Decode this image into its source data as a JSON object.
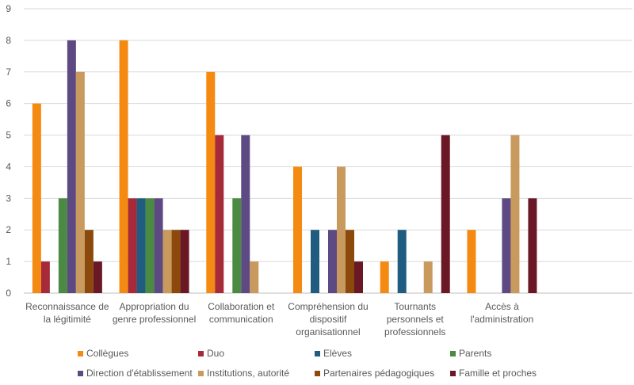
{
  "chart_data": {
    "type": "bar",
    "categories": [
      [
        "Reconnaissance de",
        "la légitimité"
      ],
      [
        "Appropriation du",
        "genre professionnel"
      ],
      [
        "Collaboration et",
        "communication"
      ],
      [
        "Compréhension du",
        "dispositif",
        "organisationnel"
      ],
      [
        "Tournants",
        "personnels et",
        "professionnels"
      ],
      [
        "Accès à",
        "l'administration"
      ],
      []
    ],
    "series": [
      {
        "name": "Collègues",
        "color": "#F58A12",
        "values": [
          6,
          8,
          7,
          4,
          1,
          2,
          0
        ]
      },
      {
        "name": "Duo",
        "color": "#A62A3A",
        "values": [
          1,
          3,
          5,
          0,
          0,
          0,
          0
        ]
      },
      {
        "name": "Elèves",
        "color": "#1F5C7F",
        "values": [
          0,
          3,
          0,
          2,
          2,
          0,
          0
        ]
      },
      {
        "name": "Parents",
        "color": "#4A8A42",
        "values": [
          3,
          3,
          3,
          0,
          0,
          0,
          0
        ]
      },
      {
        "name": "Direction d'établissement",
        "color": "#5E4A82",
        "values": [
          8,
          3,
          5,
          2,
          0,
          3,
          0
        ]
      },
      {
        "name": "Institutions, autorité",
        "color": "#C99A5E",
        "values": [
          7,
          2,
          1,
          4,
          1,
          5,
          0
        ]
      },
      {
        "name": "Partenaires pédagogiques",
        "color": "#8B4A0C",
        "values": [
          2,
          2,
          0,
          2,
          0,
          0,
          0
        ]
      },
      {
        "name": "Famille et proches",
        "color": "#6A1826",
        "values": [
          1,
          2,
          0,
          1,
          5,
          3,
          0
        ]
      }
    ],
    "ylim": [
      0,
      9
    ],
    "yticks": [
      0,
      1,
      2,
      3,
      4,
      5,
      6,
      7,
      8,
      9
    ],
    "grid": true,
    "legend_position": "bottom",
    "title": "",
    "xlabel": "",
    "ylabel": ""
  }
}
